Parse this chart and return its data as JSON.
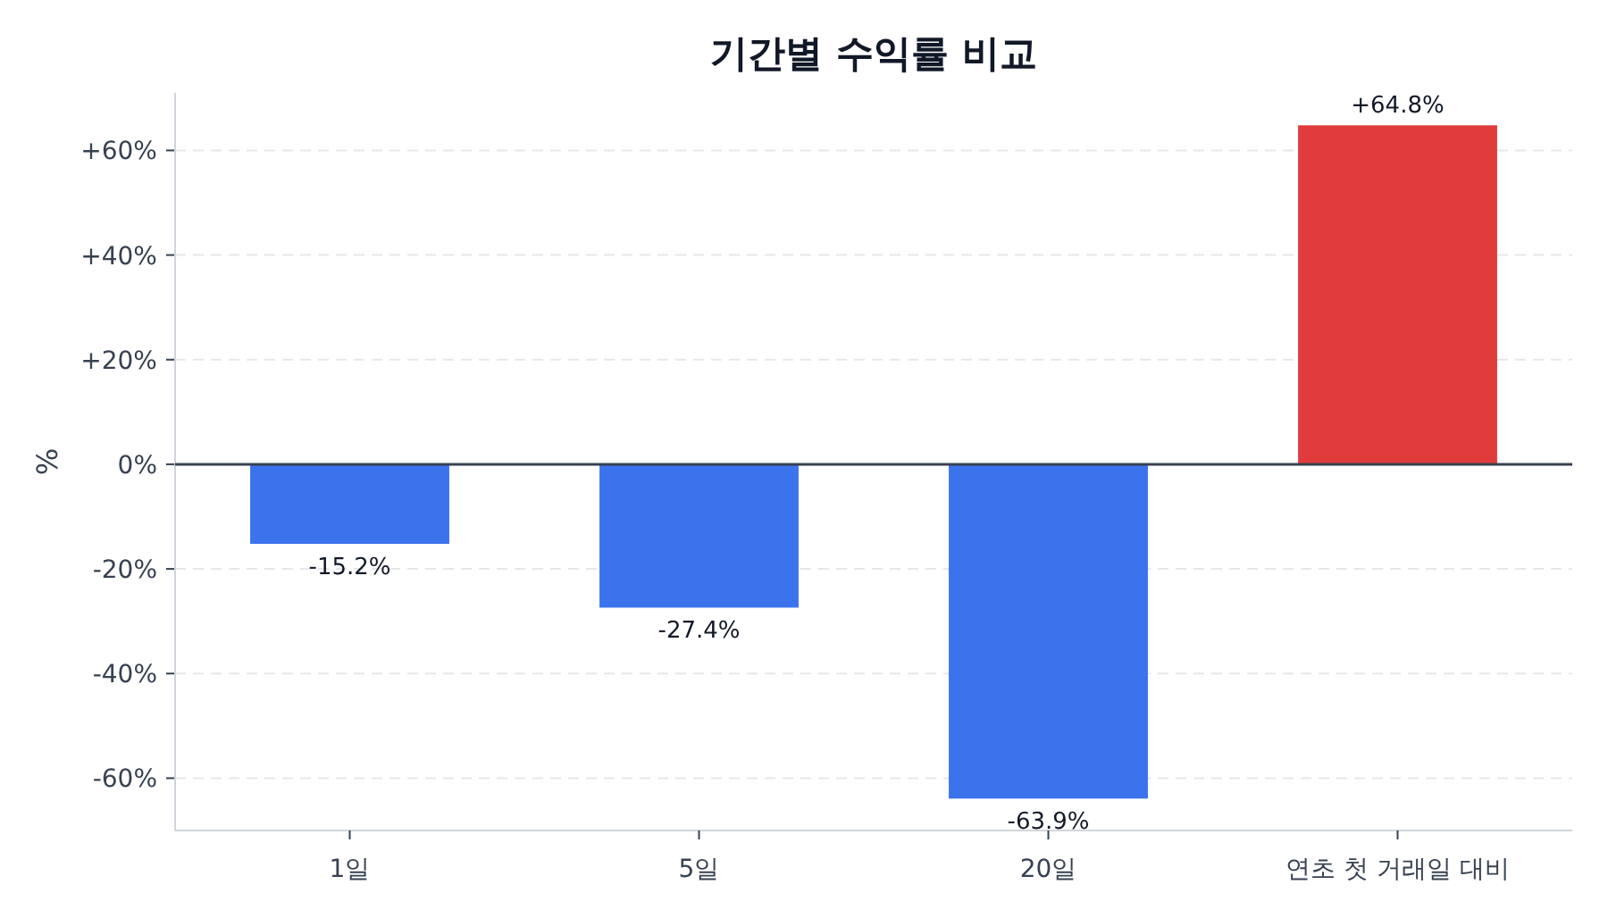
{
  "chart_data": {
    "type": "bar",
    "title": "기간별 수익률 비교",
    "ylabel": "%",
    "categories": [
      "1일",
      "5일",
      "20일",
      "연초 첫 거래일 대비"
    ],
    "values": [
      -15.2,
      -27.4,
      -63.9,
      64.8
    ],
    "colors": [
      "#3b73ec",
      "#3b73ec",
      "#3b73ec",
      "#e03c3c"
    ],
    "value_labels": [
      "-15.2%",
      "-27.4%",
      "-63.9%",
      "+64.8%"
    ],
    "ylim": [
      -70,
      71
    ],
    "yticks": [
      {
        "value": -60,
        "label": "-60%"
      },
      {
        "value": -40,
        "label": "-40%"
      },
      {
        "value": -20,
        "label": "-20%"
      },
      {
        "value": 0,
        "label": "0%"
      },
      {
        "value": 20,
        "label": "+20%"
      },
      {
        "value": 40,
        "label": "+40%"
      },
      {
        "value": 60,
        "label": "+60%"
      }
    ],
    "ref_lines": [
      {
        "axis": "y",
        "value": 0,
        "color": "#374151"
      }
    ],
    "grid": "y"
  }
}
